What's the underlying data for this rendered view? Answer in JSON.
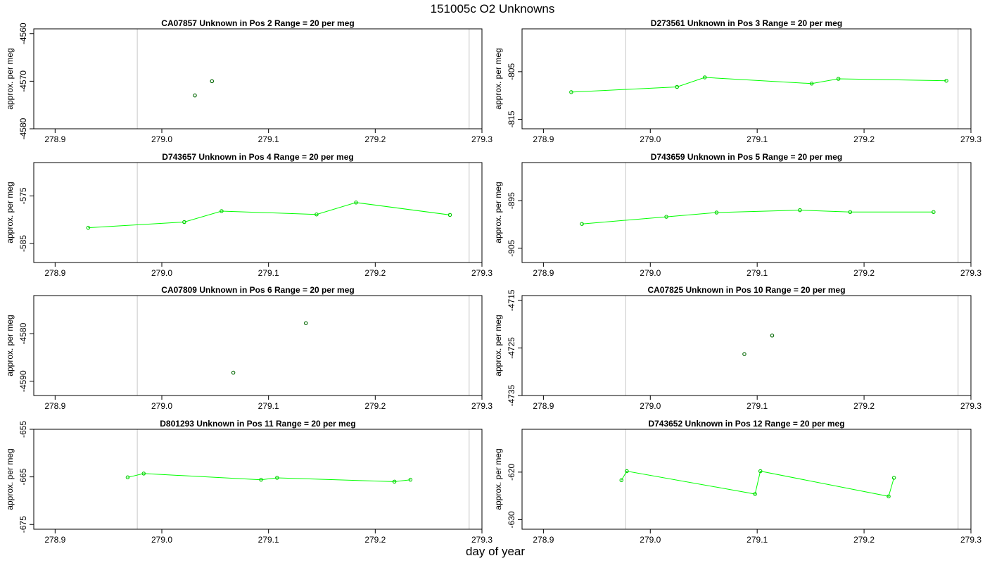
{
  "title": "151005c  O2 Unknowns",
  "xlabel": "day of year",
  "chart_data": [
    {
      "type": "scatter",
      "title": "CA07857    Unknown in Pos 2         Range = 20 per meg",
      "ylabel": "approx. per meg",
      "xlim": [
        278.88,
        279.3
      ],
      "ylim": [
        -4580,
        -4559
      ],
      "xticks": [
        "278.9",
        "279.0",
        "279.1",
        "279.2",
        "279.3"
      ],
      "yticks": [
        "-4560",
        "-4570",
        "-4580"
      ],
      "vlines": [
        278.977,
        279.288
      ],
      "series": [
        {
          "x": [
            279.031,
            279.047
          ],
          "y": [
            -4573.0,
            -4570.0
          ],
          "color": "#00cc00",
          "marker_color": "#006600",
          "connect": false
        }
      ]
    },
    {
      "type": "line",
      "title": "D273561    Unknown in Pos 3         Range = 20 per meg",
      "ylabel": "approx. per meg",
      "xlim": [
        278.88,
        279.3
      ],
      "ylim": [
        -817,
        -796
      ],
      "xticks": [
        "278.9",
        "279.0",
        "279.1",
        "279.2",
        "279.3"
      ],
      "yticks": [
        "-805",
        "-815"
      ],
      "vlines": [
        278.977,
        279.288
      ],
      "series": [
        {
          "x": [
            278.926,
            279.025,
            279.051,
            279.151,
            279.176,
            279.277
          ],
          "y": [
            -809.3,
            -808.2,
            -806.2,
            -807.5,
            -806.5,
            -806.9
          ],
          "color": "#00ff00",
          "marker_color": "#00cc00",
          "connect": true
        }
      ]
    },
    {
      "type": "line",
      "title": "D743657    Unknown in Pos 4         Range = 20 per meg",
      "ylabel": "approx. per meg",
      "xlim": [
        278.88,
        279.3
      ],
      "ylim": [
        -589,
        -568
      ],
      "xticks": [
        "278.9",
        "279.0",
        "279.1",
        "279.2",
        "279.3"
      ],
      "yticks": [
        "-575",
        "-585"
      ],
      "vlines": [
        278.977,
        279.288
      ],
      "series": [
        {
          "x": [
            278.931,
            279.021,
            279.056,
            279.145,
            279.182,
            279.27
          ],
          "y": [
            -581.7,
            -580.5,
            -578.2,
            -578.9,
            -576.4,
            -579.0
          ],
          "color": "#00ff00",
          "marker_color": "#00cc00",
          "connect": true
        }
      ]
    },
    {
      "type": "line",
      "title": "D743659    Unknown in Pos 5         Range = 20 per meg",
      "ylabel": "approx. per meg",
      "xlim": [
        278.88,
        279.3
      ],
      "ylim": [
        -908,
        -887
      ],
      "xticks": [
        "278.9",
        "279.0",
        "279.1",
        "279.2",
        "279.3"
      ],
      "yticks": [
        "-895",
        "-905"
      ],
      "vlines": [
        278.977,
        279.288
      ],
      "series": [
        {
          "x": [
            278.936,
            279.015,
            279.062,
            279.14,
            279.187,
            279.265
          ],
          "y": [
            -899.9,
            -898.4,
            -897.5,
            -897.0,
            -897.4,
            -897.4
          ],
          "color": "#00ff00",
          "marker_color": "#00cc00",
          "connect": true
        }
      ]
    },
    {
      "type": "scatter",
      "title": "CA07809    Unknown in Pos 6         Range = 20 per meg",
      "ylabel": "approx. per meg",
      "xlim": [
        278.88,
        279.3
      ],
      "ylim": [
        -4593,
        -4572
      ],
      "xticks": [
        "278.9",
        "279.0",
        "279.1",
        "279.2",
        "279.3"
      ],
      "yticks": [
        "-4580",
        "-4590"
      ],
      "vlines": [
        278.977,
        279.288
      ],
      "series": [
        {
          "x": [
            279.067,
            279.135
          ],
          "y": [
            -4588.2,
            -4577.8
          ],
          "color": "#00cc00",
          "marker_color": "#006600",
          "connect": false
        }
      ]
    },
    {
      "type": "scatter",
      "title": "CA07825    Unknown in Pos 10         Range = 20 per meg",
      "ylabel": "approx. per meg",
      "xlim": [
        278.88,
        279.3
      ],
      "ylim": [
        -4735,
        -4714
      ],
      "xticks": [
        "278.9",
        "279.0",
        "279.1",
        "279.2",
        "279.3"
      ],
      "yticks": [
        "-4715",
        "-4725",
        "-4735"
      ],
      "vlines": [
        278.977,
        279.288
      ],
      "series": [
        {
          "x": [
            279.088,
            279.114
          ],
          "y": [
            -4726.3,
            -4722.4
          ],
          "color": "#00cc00",
          "marker_color": "#006600",
          "connect": false
        }
      ]
    },
    {
      "type": "line",
      "title": "D801293    Unknown in Pos 11         Range = 20 per meg",
      "ylabel": "approx. per meg",
      "xlim": [
        278.88,
        279.3
      ],
      "ylim": [
        -676,
        -655
      ],
      "xticks": [
        "278.9",
        "279.0",
        "279.1",
        "279.2",
        "279.3"
      ],
      "yticks": [
        "-655",
        "-665",
        "-675"
      ],
      "vlines": [
        278.977,
        279.288
      ],
      "series": [
        {
          "x": [
            278.968,
            278.983,
            279.093,
            279.108,
            279.218,
            279.233
          ],
          "y": [
            -665.1,
            -664.3,
            -665.6,
            -665.2,
            -666.0,
            -665.6
          ],
          "color": "#00ff00",
          "marker_color": "#00cc00",
          "connect": true
        }
      ]
    },
    {
      "type": "line",
      "title": "D743652    Unknown in Pos 12         Range = 20 per meg",
      "ylabel": "approx. per meg",
      "xlim": [
        278.88,
        279.3
      ],
      "ylim": [
        -632,
        -611
      ],
      "xticks": [
        "278.9",
        "279.0",
        "279.1",
        "279.2",
        "279.3"
      ],
      "yticks": [
        "-620",
        "-630"
      ],
      "vlines": [
        278.977,
        279.288
      ],
      "series": [
        {
          "x": [
            278.973,
            278.978,
            279.098,
            279.103,
            279.223,
            279.228
          ],
          "y": [
            -621.7,
            -619.8,
            -624.6,
            -619.8,
            -625.1,
            -621.2
          ],
          "color": "#00ff00",
          "marker_color": "#00cc00",
          "connect": true
        }
      ]
    }
  ]
}
